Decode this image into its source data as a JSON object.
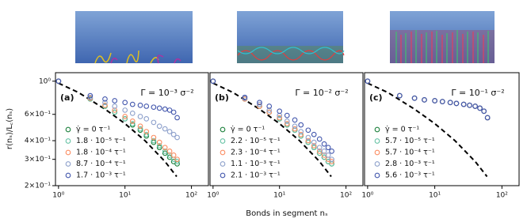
{
  "chart_data": [
    {
      "type": "scatter",
      "letter": "(a)",
      "annotation": "Γ = 10⁻³ σ⁻²",
      "ylabel": "r(nₛ)/L꜀(nₛ)",
      "xlabel": "Bonds in segment nₛ",
      "log_x": true,
      "log_y": true,
      "xlim": [
        0.9,
        180
      ],
      "ylim": [
        0.2,
        1.14
      ],
      "xticks": [
        {
          "value": 1,
          "label": "10⁰"
        },
        {
          "value": 10,
          "label": "10¹"
        },
        {
          "value": 100,
          "label": "10²"
        }
      ],
      "yticks": [
        {
          "value": 0.2,
          "label": "2×10⁻¹"
        },
        {
          "value": 0.3,
          "label": "3×10⁻¹"
        },
        {
          "value": 0.4,
          "label": "4×10⁻¹"
        },
        {
          "value": 0.6,
          "label": "6×10⁻¹"
        },
        {
          "value": 1,
          "label": "10⁰"
        }
      ],
      "reference": {
        "x": [
          1,
          2,
          5,
          10,
          20,
          40,
          60
        ],
        "values": [
          0.97,
          0.84,
          0.65,
          0.52,
          0.4,
          0.29,
          0.23
        ],
        "color": "#000000"
      },
      "x": [
        1,
        3,
        5,
        7,
        10,
        13,
        17,
        21,
        27,
        33,
        40,
        47,
        54,
        61
      ],
      "series": [
        {
          "name": "γ̇ = 0 τ⁻¹",
          "color": "#1a7f3a",
          "values": [
            1.0,
            0.76,
            0.68,
            0.62,
            0.56,
            0.51,
            0.47,
            0.43,
            0.39,
            0.36,
            0.33,
            0.31,
            0.29,
            0.28
          ]
        },
        {
          "name": "1.8 · 10⁻⁵ τ⁻¹",
          "color": "#66c2a5",
          "values": [
            1.0,
            0.76,
            0.68,
            0.62,
            0.56,
            0.52,
            0.48,
            0.44,
            0.4,
            0.37,
            0.34,
            0.32,
            0.3,
            0.29
          ]
        },
        {
          "name": "1.8 · 10⁻⁴ τ⁻¹",
          "color": "#fc8d62",
          "values": [
            1.0,
            0.77,
            0.69,
            0.64,
            0.58,
            0.54,
            0.5,
            0.46,
            0.42,
            0.39,
            0.36,
            0.34,
            0.32,
            0.3
          ]
        },
        {
          "name": "8.7 · 10⁻⁴ τ⁻¹",
          "color": "#8da0cb",
          "values": [
            1.0,
            0.78,
            0.72,
            0.68,
            0.64,
            0.61,
            0.58,
            0.56,
            0.53,
            0.5,
            0.48,
            0.46,
            0.44,
            0.42
          ]
        },
        {
          "name": "1.7 · 10⁻³ τ⁻¹",
          "color": "#4357ad",
          "values": [
            1.0,
            0.8,
            0.76,
            0.74,
            0.72,
            0.7,
            0.69,
            0.68,
            0.67,
            0.66,
            0.65,
            0.64,
            0.62,
            0.57
          ]
        }
      ]
    },
    {
      "type": "scatter",
      "letter": "(b)",
      "annotation": "Γ = 10⁻² σ⁻²",
      "log_x": true,
      "log_y": true,
      "xlim": [
        0.9,
        180
      ],
      "ylim": [
        0.2,
        1.14
      ],
      "xticks": [
        {
          "value": 1,
          "label": "10⁰"
        },
        {
          "value": 10,
          "label": "10¹"
        },
        {
          "value": 100,
          "label": "10²"
        }
      ],
      "reference": {
        "x": [
          1,
          2,
          5,
          10,
          20,
          40,
          60
        ],
        "values": [
          0.97,
          0.84,
          0.65,
          0.52,
          0.4,
          0.29,
          0.23
        ],
        "color": "#000000"
      },
      "x": [
        1,
        3,
        5,
        7,
        10,
        13,
        17,
        21,
        27,
        33,
        40,
        47,
        54,
        61
      ],
      "series": [
        {
          "name": "γ̇ = 0 τ⁻¹",
          "color": "#1a7f3a",
          "values": [
            1.0,
            0.76,
            0.68,
            0.62,
            0.56,
            0.51,
            0.47,
            0.43,
            0.39,
            0.36,
            0.33,
            0.31,
            0.29,
            0.28
          ]
        },
        {
          "name": "2.2 · 10⁻⁵ τ⁻¹",
          "color": "#66c2a5",
          "values": [
            1.0,
            0.76,
            0.68,
            0.62,
            0.56,
            0.51,
            0.47,
            0.43,
            0.39,
            0.36,
            0.33,
            0.31,
            0.29,
            0.28
          ]
        },
        {
          "name": "2.3 · 10⁻⁴ τ⁻¹",
          "color": "#fc8d62",
          "values": [
            1.0,
            0.76,
            0.68,
            0.62,
            0.57,
            0.52,
            0.48,
            0.44,
            0.4,
            0.37,
            0.34,
            0.32,
            0.3,
            0.29
          ]
        },
        {
          "name": "1.1 · 10⁻³ τ⁻¹",
          "color": "#8da0cb",
          "values": [
            1.0,
            0.77,
            0.7,
            0.64,
            0.59,
            0.54,
            0.5,
            0.46,
            0.42,
            0.39,
            0.36,
            0.34,
            0.32,
            0.3
          ]
        },
        {
          "name": "2.1 · 10⁻³ τ⁻¹",
          "color": "#4357ad",
          "values": [
            1.0,
            0.78,
            0.72,
            0.68,
            0.63,
            0.59,
            0.55,
            0.51,
            0.47,
            0.44,
            0.41,
            0.38,
            0.36,
            0.34
          ]
        }
      ]
    },
    {
      "type": "scatter",
      "letter": "(c)",
      "annotation": "Γ = 10⁻¹ σ⁻²",
      "log_x": true,
      "log_y": true,
      "xlim": [
        0.9,
        180
      ],
      "ylim": [
        0.2,
        1.14
      ],
      "xticks": [
        {
          "value": 1,
          "label": "10⁰"
        },
        {
          "value": 10,
          "label": "10¹"
        },
        {
          "value": 100,
          "label": "10²"
        }
      ],
      "reference": {
        "x": [
          1,
          2,
          5,
          10,
          20,
          40,
          60
        ],
        "values": [
          0.97,
          0.84,
          0.65,
          0.52,
          0.4,
          0.29,
          0.23
        ],
        "color": "#000000"
      },
      "x": [
        1,
        3,
        5,
        7,
        10,
        13,
        17,
        21,
        27,
        33,
        40,
        47,
        54,
        61
      ],
      "series": [
        {
          "name": "γ̇ = 0 τ⁻¹",
          "color": "#1a7f3a",
          "values": [
            1.0,
            0.8,
            0.77,
            0.75,
            0.74,
            0.73,
            0.72,
            0.71,
            0.7,
            0.69,
            0.68,
            0.66,
            0.63,
            0.57
          ]
        },
        {
          "name": "5.7 · 10⁻⁵ τ⁻¹",
          "color": "#66c2a5",
          "values": [
            1.0,
            0.8,
            0.77,
            0.75,
            0.74,
            0.73,
            0.72,
            0.71,
            0.7,
            0.69,
            0.68,
            0.66,
            0.63,
            0.57
          ]
        },
        {
          "name": "5.7 · 10⁻⁴ τ⁻¹",
          "color": "#fc8d62",
          "values": [
            1.0,
            0.8,
            0.77,
            0.75,
            0.74,
            0.73,
            0.72,
            0.71,
            0.7,
            0.69,
            0.68,
            0.66,
            0.63,
            0.57
          ]
        },
        {
          "name": "2.8 · 10⁻³ τ⁻¹",
          "color": "#8da0cb",
          "values": [
            1.0,
            0.8,
            0.77,
            0.75,
            0.74,
            0.73,
            0.72,
            0.71,
            0.7,
            0.69,
            0.68,
            0.66,
            0.63,
            0.57
          ]
        },
        {
          "name": "5.6 · 10⁻³ τ⁻¹",
          "color": "#4357ad",
          "values": [
            1.0,
            0.8,
            0.77,
            0.75,
            0.74,
            0.73,
            0.72,
            0.71,
            0.7,
            0.69,
            0.68,
            0.66,
            0.63,
            0.57
          ]
        }
      ]
    }
  ]
}
